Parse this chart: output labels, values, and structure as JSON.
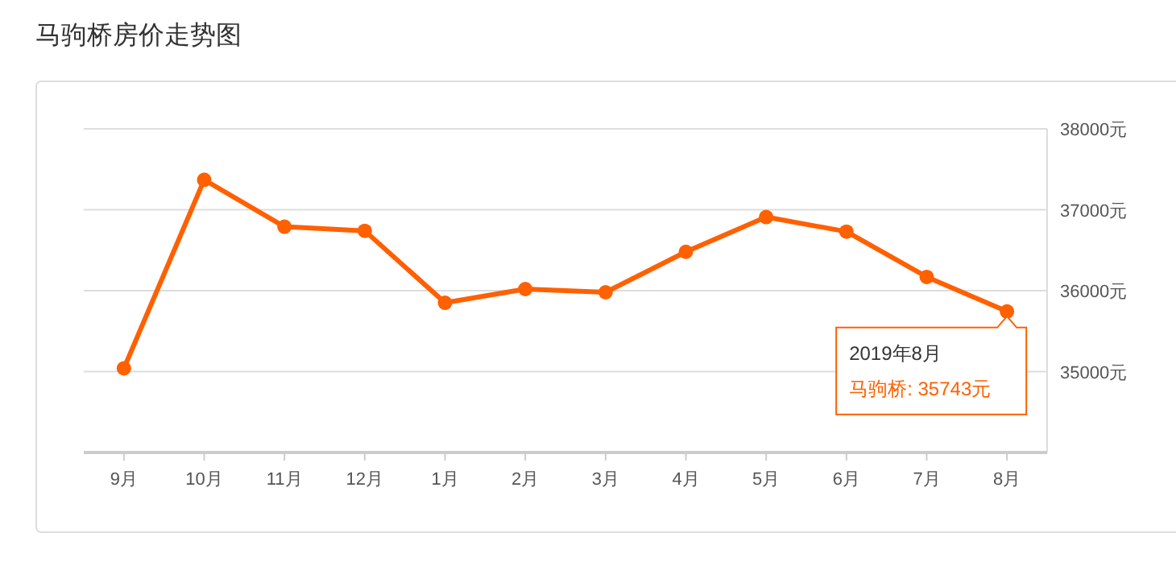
{
  "chart_data": {
    "type": "line",
    "title": "马驹桥房价走势图",
    "categories": [
      "9月",
      "10月",
      "11月",
      "12月",
      "1月",
      "2月",
      "3月",
      "4月",
      "5月",
      "6月",
      "7月",
      "8月"
    ],
    "series": [
      {
        "color": "#ff6000",
        "values": [
          35040,
          37370,
          36790,
          36740,
          35850,
          36020,
          35980,
          36480,
          36910,
          36730,
          36170,
          35743
        ]
      }
    ],
    "annotations": [
      "2019年8月",
      "马驹桥: 35743元"
    ],
    "ylim": [
      34000,
      38000
    ],
    "yticks": [
      {
        "value": 34000,
        "label": null
      },
      {
        "value": 35000,
        "label": "35000元"
      },
      {
        "value": 36000,
        "label": "36000元"
      },
      {
        "value": 37000,
        "label": "37000元"
      },
      {
        "value": 38000,
        "label": "38000元"
      }
    ],
    "grid": "y",
    "marker": "circle",
    "line_style": "solid"
  }
}
